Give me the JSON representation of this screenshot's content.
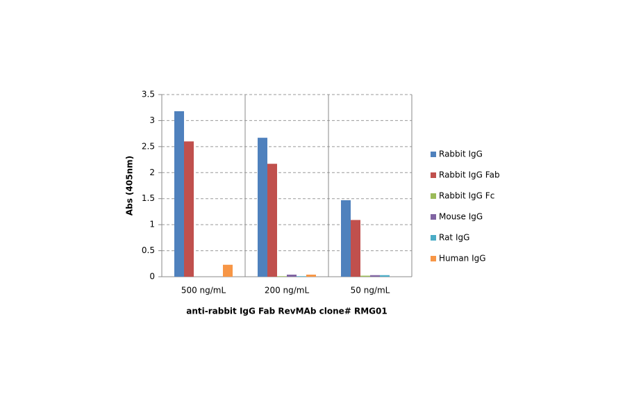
{
  "chart_data": {
    "type": "bar",
    "y_label": "Abs (405nm)",
    "x_label": "anti-rabbit IgG Fab RevMAb clone# RMG01",
    "categories": [
      "500 ng/mL",
      "200 ng/mL",
      "50 ng/mL"
    ],
    "series": [
      {
        "name": "Rabbit IgG",
        "color": "#4f81bd",
        "values": [
          3.18,
          2.67,
          1.47
        ]
      },
      {
        "name": "Rabbit IgG Fab",
        "color": "#c0504d",
        "values": [
          2.6,
          2.17,
          1.09
        ]
      },
      {
        "name": "Rabbit IgG Fc",
        "color": "#9bbb59",
        "values": [
          0,
          0.01,
          0.02
        ]
      },
      {
        "name": "Mouse IgG",
        "color": "#8064a2",
        "values": [
          0,
          0.04,
          0.03
        ]
      },
      {
        "name": "Rat IgG",
        "color": "#4bacc6",
        "values": [
          0,
          0.01,
          0.03
        ]
      },
      {
        "name": "Human IgG",
        "color": "#f79646",
        "values": [
          0.23,
          0.04,
          0
        ]
      }
    ],
    "ylim": [
      0,
      3.5
    ],
    "yticks": [
      0,
      0.5,
      1,
      1.5,
      2,
      2.5,
      3,
      3.5
    ],
    "grid": true,
    "legend": "right"
  }
}
